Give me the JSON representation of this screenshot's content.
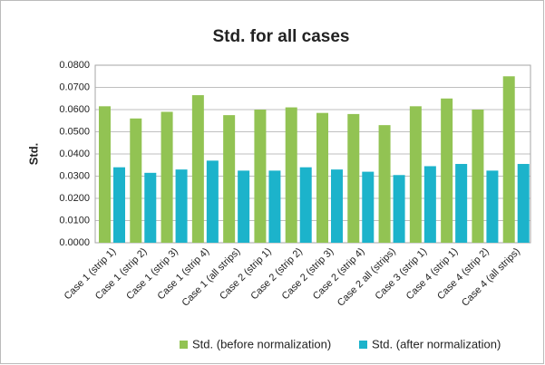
{
  "chart_data": {
    "type": "bar",
    "title": "Std.  for all cases",
    "y_label": "Std.",
    "categories": [
      "Case 1 (strip 1)",
      "Case 1 (strip 2)",
      "Case 1 (strip 3)",
      "Case 1 (strip 4)",
      "Case 1 (all strips)",
      "Case 2 (strip 1)",
      "Case 2 (strip 2)",
      "Case 2 (strip 3)",
      "Case 2 (strip 4)",
      "Case 2 all (strips)",
      "Case 3 (strip 1)",
      "Case 4 (strip 1)",
      "Case 4 (strip 2)",
      "Case 4 (all strips)"
    ],
    "series": [
      {
        "name": "Std. (before normalization)",
        "color": "#92c353",
        "values": [
          0.0615,
          0.056,
          0.059,
          0.0665,
          0.0575,
          0.06,
          0.061,
          0.0585,
          0.058,
          0.053,
          0.0615,
          0.065,
          0.06,
          0.075
        ]
      },
      {
        "name": "Std. (after normalization)",
        "color": "#1cb3cb",
        "values": [
          0.034,
          0.0315,
          0.033,
          0.037,
          0.0325,
          0.0325,
          0.034,
          0.033,
          0.032,
          0.0305,
          0.0345,
          0.0355,
          0.0325,
          0.0355
        ]
      }
    ],
    "ylim": [
      0,
      0.08
    ],
    "yticks": [
      {
        "value": 0,
        "label": "0.0000"
      },
      {
        "value": 0.01,
        "label": "0.0100"
      },
      {
        "value": 0.02,
        "label": "0.0200"
      },
      {
        "value": 0.03,
        "label": "0.0300"
      },
      {
        "value": 0.04,
        "label": "0.0400"
      },
      {
        "value": 0.05,
        "label": "0.0500"
      },
      {
        "value": 0.06,
        "label": "0.0600"
      },
      {
        "value": 0.07,
        "label": "0.0700"
      },
      {
        "value": 0.08,
        "label": "0.0800"
      }
    ],
    "grid": true,
    "legend": "bottom"
  }
}
